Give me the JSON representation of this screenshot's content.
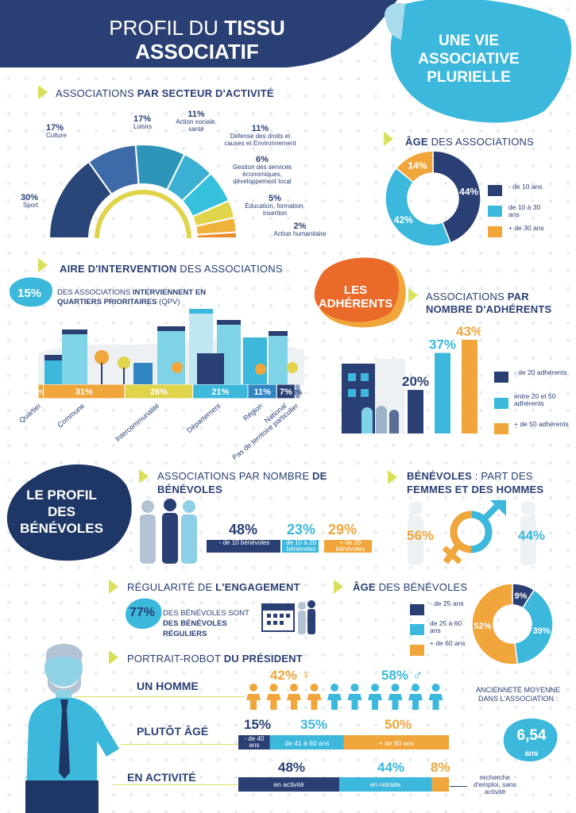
{
  "header": {
    "title_line1_light": "PROFIL DU ",
    "title_line1_bold": "TISSU",
    "title_line2": "ASSOCIATIF",
    "badge": "UNE VIE ASSOCIATIVE PLURIELLE"
  },
  "sectors": {
    "title_light": "ASSOCIATIONS ",
    "title_bold": "PAR SECTEUR D'ACTIVITÉ",
    "items": [
      {
        "pct": "30%",
        "label": "Sport",
        "value": 30,
        "color": "#2a4679"
      },
      {
        "pct": "17%",
        "label": "Culture",
        "value": 17,
        "color": "#3d6aa8"
      },
      {
        "pct": "17%",
        "label": "Loisirs",
        "value": 17,
        "color": "#2f95b8"
      },
      {
        "pct": "11%",
        "label": "Action sociale, santé",
        "value": 11,
        "color": "#3cb0d2"
      },
      {
        "pct": "11%",
        "label": "Défense des droits et causes et Environnement",
        "value": 11,
        "color": "#35c1dc"
      },
      {
        "pct": "6%",
        "label": "Gestion des services économiques, développement local",
        "value": 6,
        "color": "#e0d44a"
      },
      {
        "pct": "5%",
        "label": "Éducation, formation, insertion",
        "value": 5,
        "color": "#f0b23a"
      },
      {
        "pct": "2%",
        "label": "Action humanitaire",
        "value": 2,
        "color": "#ea8a2a"
      }
    ]
  },
  "assoc_age": {
    "title_bold": "ÂGE",
    "title_light": " DES ASSOCIATIONS",
    "chart_data": {
      "type": "pie",
      "categories": [
        "- de 10 ans",
        "de 10 à 30 ans",
        "+ de 30 ans"
      ],
      "values": [
        44,
        42,
        14
      ],
      "colors": [
        "#2a3f74",
        "#3cb8dc",
        "#f0a63a"
      ]
    },
    "labels": [
      "44%",
      "42%",
      "14%"
    ]
  },
  "intervention": {
    "title_bold": "AIRE D'INTERVENTION",
    "title_light": " DES ASSOCIATIONS",
    "qpv_pct": "15%",
    "qpv_text1": "DES ASSOCIATIONS ",
    "qpv_bold": "INTERVIENNENT EN QUARTIERS PRIORITAIRES",
    "qpv_text2": " (QPV)",
    "chart_data": {
      "type": "bar",
      "categories": [
        "Quartier",
        "Commune",
        "Intercommunalité",
        "Département",
        "Région",
        "National",
        "Pas de territoire particulier"
      ],
      "values": [
        2,
        31,
        26,
        21,
        11,
        7,
        2
      ],
      "colors": [
        "#f0a63a",
        "#f0a63a",
        "#e0d44a",
        "#3cb8dc",
        "#2f86c2",
        "#2a3f74",
        "#8aa0c0"
      ]
    },
    "labels": [
      "2%",
      "31%",
      "26%",
      "21%",
      "11%",
      "7%",
      "2%"
    ]
  },
  "adherents": {
    "badge": "LES ADHÉRENTS",
    "title_light": "ASSOCIATIONS ",
    "title_bold": "PAR NOMBRE D'ADHÉRENTS",
    "chart_data": {
      "type": "bar",
      "categories": [
        "- de 20 adhérents",
        "entre 20 et 50 adhérents",
        "+ de 50 adhérents"
      ],
      "values": [
        20,
        37,
        43
      ],
      "colors": [
        "#2a3f74",
        "#3cb8dc",
        "#f0a63a"
      ]
    },
    "labels": [
      "20%",
      "37%",
      "43%"
    ]
  },
  "benevoles": {
    "badge": "LE PROFIL DES BÉNÉVOLES",
    "count_title_light": "ASSOCIATIONS PAR NOMBRE ",
    "count_title_bold": "DE BÉNÉVOLES",
    "count": [
      {
        "pct": "48%",
        "label": "- de 10 bénévoles",
        "value": 48,
        "color": "#2a3f74"
      },
      {
        "pct": "23%",
        "label": "de 10 à 20 bénévoles",
        "value": 23,
        "color": "#3cb8dc"
      },
      {
        "pct": "29%",
        "label": "+ de 20 bénévoles",
        "value": 29,
        "color": "#f0a63a"
      }
    ],
    "gender_title_bold1": "BÉNÉVOLES",
    "gender_title_light": " : PART DES",
    "gender_title_bold2": "FEMMES ET DES HOMMES",
    "women_pct": "56%",
    "men_pct": "44%",
    "reg_title_light": "RÉGULARITÉ DE ",
    "reg_title_bold": "L'ENGAGEMENT",
    "reg_pct": "77%",
    "reg_text": "DES BÉNÉVOLES SONT",
    "reg_bold": "DES BÉNÉVOLES RÉGULIERS",
    "age_title_bold": "ÂGE",
    "age_title_light": " DES BÉNÉVOLES",
    "age_chart": {
      "type": "pie",
      "categories": [
        "- de 25 ans",
        "de 25 à 60 ans",
        "+ de 60 ans"
      ],
      "values": [
        9,
        39,
        52
      ],
      "colors": [
        "#2a3f74",
        "#3cb8dc",
        "#f0a63a"
      ]
    },
    "age_labels": [
      "9%",
      "39%",
      "52%"
    ]
  },
  "president": {
    "title_light": "PORTRAIT-ROBOT ",
    "title_bold": "DU PRÉSIDENT",
    "row1": "UN HOMME",
    "row1_female_pct": "42%",
    "row1_male_pct": "58%",
    "female_icon_count": 4,
    "male_icon_count": 6,
    "row2": "PLUTÔT ÂGÉ",
    "age_chart": {
      "type": "bar",
      "categories": [
        "- de 40 ans",
        "de 41 à 60 ans",
        "+ de 60 ans"
      ],
      "values": [
        15,
        35,
        50
      ]
    },
    "age_labels": [
      "15%",
      "35%",
      "50%"
    ],
    "row3": "EN ACTIVITÉ",
    "activity_chart": {
      "type": "bar",
      "categories": [
        "en activité",
        "en retraite",
        "recherche d'emploi, sans activité"
      ],
      "values": [
        48,
        44,
        8
      ]
    },
    "activity_labels": [
      "48%",
      "44%",
      "8%"
    ],
    "seniority_label": "ANCIENNETÉ MOYENNE DANS L'ASSOCIATION :",
    "seniority_value": "6,54",
    "seniority_unit": "ans"
  }
}
